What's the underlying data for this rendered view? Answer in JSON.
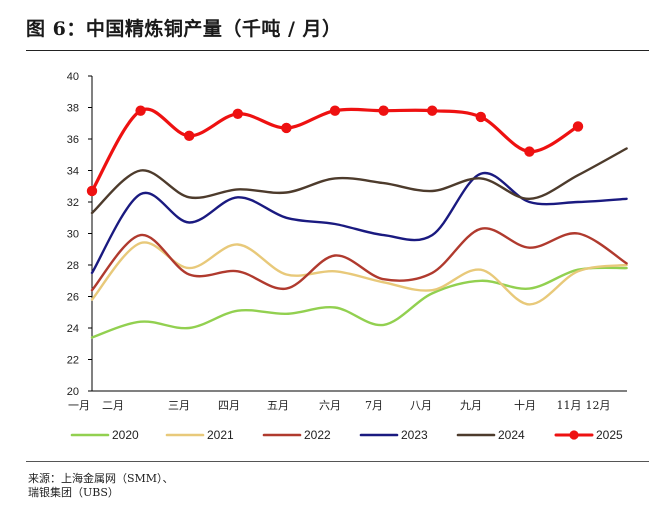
{
  "figure": {
    "title": "图 6：中国精炼铜产量（千吨 / 月）",
    "source_line1": "来源：上海金属网（SMM）、",
    "source_line2": "瑞银集团（UBS）"
  },
  "chart_data": {
    "type": "line",
    "title": "图 6：中国精炼铜产量（千吨 / 月）",
    "xlabel": "",
    "ylabel": "",
    "x_tick_labels": [
      "一月",
      "二月",
      "三月",
      "四月",
      "五月",
      "六月",
      "7月",
      "八月",
      "九月",
      "十月",
      "11月",
      "12月"
    ],
    "ylim": [
      20,
      40
    ],
    "yticks": [
      20,
      22,
      24,
      26,
      28,
      30,
      32,
      34,
      36,
      38,
      40
    ],
    "grid": false,
    "legend_position": "bottom",
    "series": [
      {
        "name": "2020",
        "color": "#92d050",
        "marker": false,
        "values": [
          23.4,
          24.4,
          24.0,
          25.1,
          24.9,
          25.3,
          24.2,
          26.2,
          27.0,
          26.5,
          27.7,
          27.8
        ]
      },
      {
        "name": "2021",
        "color": "#e8c97a",
        "marker": false,
        "values": [
          25.8,
          29.4,
          27.8,
          29.3,
          27.4,
          27.6,
          26.9,
          26.4,
          27.7,
          25.5,
          27.6,
          28.0
        ]
      },
      {
        "name": "2022",
        "color": "#b03a2e",
        "marker": false,
        "values": [
          26.4,
          29.9,
          27.4,
          27.6,
          26.5,
          28.6,
          27.1,
          27.5,
          30.3,
          29.1,
          30.0,
          28.1
        ]
      },
      {
        "name": "2023",
        "color": "#1a1a80",
        "marker": false,
        "values": [
          27.5,
          32.5,
          30.7,
          32.3,
          31.0,
          30.6,
          29.9,
          29.9,
          33.8,
          32.0,
          32.0,
          32.2
        ]
      },
      {
        "name": "2024",
        "color": "#4d3b2c",
        "marker": false,
        "values": [
          31.3,
          34.0,
          32.3,
          32.8,
          32.6,
          33.5,
          33.2,
          32.7,
          33.5,
          32.2,
          33.7,
          35.4
        ]
      },
      {
        "name": "2025",
        "color": "#ee1111",
        "marker": true,
        "values": [
          32.7,
          37.8,
          36.2,
          37.6,
          36.7,
          37.8,
          37.8,
          37.8,
          37.4,
          35.2,
          36.8,
          null
        ]
      }
    ]
  }
}
